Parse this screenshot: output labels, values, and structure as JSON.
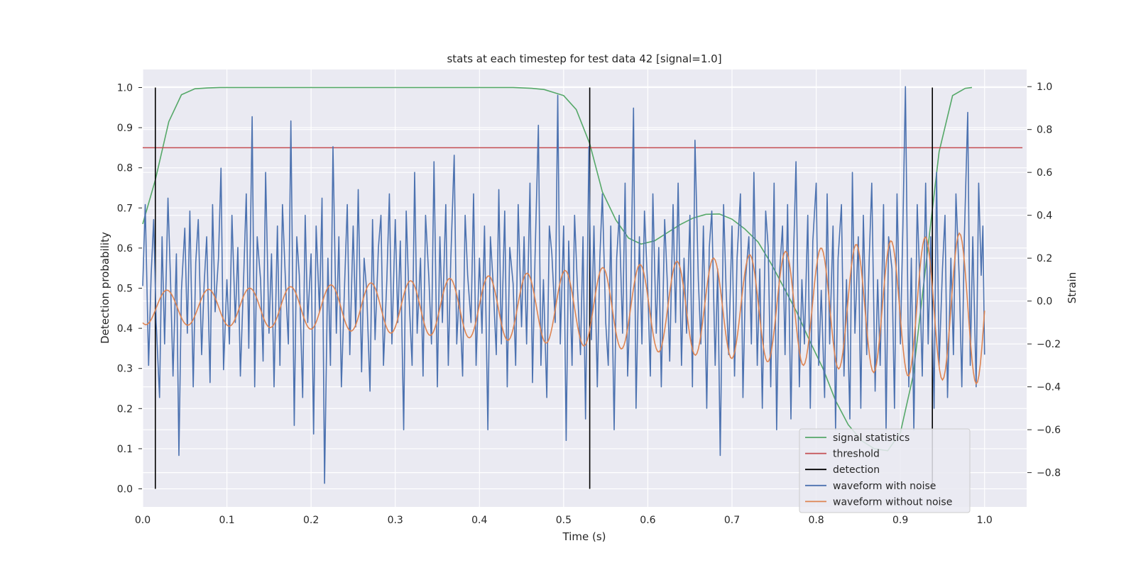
{
  "chart_data": {
    "type": "line",
    "title": "stats at each timestep for test data 42 [signal=1.0]",
    "xlabel": "Time (s)",
    "ylabel_left": "Detection probability",
    "ylabel_right": "Strain",
    "xlim": [
      0.0,
      1.05
    ],
    "ylim_left": [
      -0.045,
      1.045
    ],
    "ylim_right": [
      -0.96,
      1.08
    ],
    "x_ticks": [
      0.0,
      0.1,
      0.2,
      0.3,
      0.4,
      0.5,
      0.6,
      0.7,
      0.8,
      0.9,
      1.0
    ],
    "x_tick_labels": [
      "0.0",
      "0.1",
      "0.2",
      "0.3",
      "0.4",
      "0.5",
      "0.6",
      "0.7",
      "0.8",
      "0.9",
      "1.0"
    ],
    "y_left_ticks": [
      0.0,
      0.1,
      0.2,
      0.3,
      0.4,
      0.5,
      0.6,
      0.7,
      0.8,
      0.9,
      1.0
    ],
    "y_left_tick_labels": [
      "0.0",
      "0.1",
      "0.2",
      "0.3",
      "0.4",
      "0.5",
      "0.6",
      "0.7",
      "0.8",
      "0.9",
      "1.0"
    ],
    "y_right_ticks": [
      -0.8,
      -0.6,
      -0.4,
      -0.2,
      0.0,
      0.2,
      0.4,
      0.6,
      0.8,
      1.0
    ],
    "y_right_tick_labels": [
      "−0.8",
      "−0.6",
      "−0.4",
      "−0.2",
      "0.0",
      "0.2",
      "0.4",
      "0.6",
      "0.8",
      "1.0"
    ],
    "grid": true,
    "legend_position": "lower-right",
    "colors": {
      "signal_statistics": "#55a868",
      "threshold": "#c44e52",
      "detection": "#000000",
      "waveform_with_noise": "#4c72b0",
      "waveform_without_noise": "#dd8452",
      "axes_background": "#eaeaf2",
      "grid": "#ffffff"
    },
    "legend": [
      {
        "key": "signal_statistics",
        "label": "signal statistics"
      },
      {
        "key": "threshold",
        "label": "threshold"
      },
      {
        "key": "detection",
        "label": "detection"
      },
      {
        "key": "waveform_with_noise",
        "label": "waveform with noise"
      },
      {
        "key": "waveform_without_noise",
        "label": "waveform without noise"
      }
    ],
    "series": [
      {
        "name": "signal statistics",
        "axis": "left",
        "x": [
          0.0,
          0.015,
          0.031,
          0.046,
          0.062,
          0.077,
          0.092,
          0.2,
          0.3,
          0.4,
          0.44,
          0.462,
          0.477,
          0.5,
          0.515,
          0.531,
          0.546,
          0.562,
          0.577,
          0.592,
          0.608,
          0.623,
          0.638,
          0.654,
          0.669,
          0.685,
          0.7,
          0.715,
          0.731,
          0.746,
          0.762,
          0.777,
          0.792,
          0.808,
          0.823,
          0.838,
          0.854,
          0.869,
          0.885,
          0.9,
          0.915,
          0.931,
          0.946,
          0.962,
          0.977,
          0.985
        ],
        "y": [
          0.66,
          0.77,
          0.915,
          0.982,
          0.997,
          0.999,
          1.0,
          1.0,
          1.0,
          1.0,
          1.0,
          0.998,
          0.995,
          0.98,
          0.945,
          0.86,
          0.74,
          0.67,
          0.625,
          0.61,
          0.618,
          0.638,
          0.658,
          0.675,
          0.684,
          0.685,
          0.672,
          0.648,
          0.615,
          0.563,
          0.5,
          0.44,
          0.37,
          0.3,
          0.22,
          0.16,
          0.12,
          0.1,
          0.095,
          0.14,
          0.28,
          0.57,
          0.84,
          0.98,
          0.998,
          1.0
        ]
      },
      {
        "name": "threshold",
        "axis": "left",
        "x": [
          0.0,
          1.045
        ],
        "y": [
          0.85,
          0.85
        ]
      },
      {
        "name": "detection",
        "axis": "left",
        "type": "vlines",
        "x": [
          0.015,
          0.531,
          0.938
        ],
        "ymin": 0.0,
        "ymax": 1.0
      },
      {
        "name": "waveform with noise",
        "axis": "right",
        "x": [
          0.0,
          0.003,
          0.007,
          0.01,
          0.013,
          0.016,
          0.02,
          0.023,
          0.026,
          0.03,
          0.033,
          0.036,
          0.04,
          0.043,
          0.046,
          0.05,
          0.053,
          0.056,
          0.06,
          0.063,
          0.066,
          0.07,
          0.073,
          0.076,
          0.08,
          0.083,
          0.086,
          0.09,
          0.093,
          0.096,
          0.1,
          0.103,
          0.106,
          0.11,
          0.113,
          0.116,
          0.12,
          0.123,
          0.126,
          0.13,
          0.133,
          0.136,
          0.14,
          0.143,
          0.146,
          0.15,
          0.153,
          0.156,
          0.16,
          0.163,
          0.166,
          0.17,
          0.173,
          0.176,
          0.18,
          0.183,
          0.186,
          0.19,
          0.193,
          0.196,
          0.2,
          0.203,
          0.206,
          0.21,
          0.213,
          0.216,
          0.22,
          0.223,
          0.226,
          0.23,
          0.233,
          0.236,
          0.24,
          0.243,
          0.246,
          0.25,
          0.253,
          0.256,
          0.26,
          0.263,
          0.266,
          0.27,
          0.273,
          0.276,
          0.28,
          0.283,
          0.286,
          0.29,
          0.293,
          0.296,
          0.3,
          0.303,
          0.306,
          0.31,
          0.313,
          0.316,
          0.32,
          0.323,
          0.326,
          0.33,
          0.333,
          0.336,
          0.34,
          0.343,
          0.346,
          0.35,
          0.353,
          0.356,
          0.36,
          0.363,
          0.366,
          0.37,
          0.373,
          0.376,
          0.38,
          0.383,
          0.386,
          0.39,
          0.393,
          0.396,
          0.4,
          0.403,
          0.406,
          0.41,
          0.413,
          0.416,
          0.42,
          0.423,
          0.426,
          0.43,
          0.433,
          0.436,
          0.44,
          0.443,
          0.446,
          0.45,
          0.453,
          0.456,
          0.46,
          0.463,
          0.466,
          0.47,
          0.473,
          0.476,
          0.48,
          0.483,
          0.486,
          0.49,
          0.493,
          0.496,
          0.5,
          0.503,
          0.506,
          0.51,
          0.513,
          0.516,
          0.52,
          0.523,
          0.526,
          0.53,
          0.533,
          0.536,
          0.54,
          0.543,
          0.546,
          0.55,
          0.553,
          0.556,
          0.56,
          0.563,
          0.566,
          0.57,
          0.573,
          0.576,
          0.58,
          0.583,
          0.586,
          0.59,
          0.593,
          0.596,
          0.6,
          0.603,
          0.606,
          0.61,
          0.613,
          0.616,
          0.62,
          0.623,
          0.626,
          0.63,
          0.633,
          0.636,
          0.64,
          0.643,
          0.646,
          0.65,
          0.653,
          0.656,
          0.66,
          0.663,
          0.666,
          0.67,
          0.673,
          0.676,
          0.68,
          0.683,
          0.686,
          0.69,
          0.693,
          0.696,
          0.7,
          0.703,
          0.706,
          0.71,
          0.713,
          0.716,
          0.72,
          0.723,
          0.726,
          0.73,
          0.733,
          0.736,
          0.74,
          0.743,
          0.746,
          0.75,
          0.753,
          0.756,
          0.76,
          0.763,
          0.766,
          0.77,
          0.773,
          0.776,
          0.78,
          0.783,
          0.786,
          0.79,
          0.793,
          0.796,
          0.8,
          0.803,
          0.806,
          0.81,
          0.813,
          0.816,
          0.82,
          0.823,
          0.826,
          0.83,
          0.833,
          0.836,
          0.84,
          0.843,
          0.846,
          0.85,
          0.853,
          0.856,
          0.86,
          0.863,
          0.866,
          0.87,
          0.873,
          0.876,
          0.88,
          0.883,
          0.886,
          0.89,
          0.893,
          0.896,
          0.9,
          0.903,
          0.906,
          0.91,
          0.913,
          0.916,
          0.92,
          0.923,
          0.926,
          0.93,
          0.933,
          0.936,
          0.94,
          0.943,
          0.946,
          0.95,
          0.953,
          0.956,
          0.96,
          0.963,
          0.966,
          0.97,
          0.973,
          0.976,
          0.98,
          0.983,
          0.986,
          0.99,
          0.993,
          0.996,
          0.998,
          1.0
        ],
        "y": [
          0.07,
          0.45,
          -0.3,
          0.12,
          0.38,
          -0.1,
          -0.45,
          0.3,
          -0.2,
          0.48,
          0.1,
          -0.35,
          0.22,
          -0.72,
          0.05,
          0.34,
          -0.15,
          0.42,
          -0.4,
          0.18,
          0.38,
          -0.25,
          0.08,
          0.3,
          -0.38,
          0.45,
          -0.05,
          0.2,
          0.62,
          -0.32,
          0.1,
          -0.2,
          0.4,
          -0.1,
          0.25,
          -0.35,
          0.12,
          0.5,
          -0.22,
          0.86,
          -0.4,
          0.3,
          0.1,
          -0.28,
          0.6,
          -0.15,
          0.22,
          -0.4,
          0.35,
          -0.3,
          0.45,
          0.05,
          -0.2,
          0.84,
          -0.58,
          0.3,
          0.12,
          -0.45,
          0.4,
          -0.1,
          0.22,
          -0.62,
          0.35,
          -0.05,
          0.48,
          -0.85,
          0.2,
          -0.3,
          0.72,
          -0.15,
          0.3,
          -0.4,
          0.1,
          0.45,
          -0.25,
          0.35,
          -0.12,
          0.52,
          -0.33,
          0.2,
          0.05,
          -0.42,
          0.38,
          -0.18,
          0.25,
          0.4,
          -0.3,
          0.1,
          0.5,
          -0.2,
          0.38,
          -0.1,
          0.28,
          -0.6,
          0.42,
          0.05,
          -0.3,
          0.6,
          -0.15,
          0.2,
          -0.35,
          0.4,
          0.1,
          -0.2,
          0.65,
          -0.4,
          0.3,
          -0.1,
          0.45,
          -0.3,
          0.2,
          0.68,
          -0.2,
          0.05,
          -0.35,
          0.4,
          0.12,
          -0.1,
          0.5,
          -0.3,
          0.2,
          -0.15,
          0.35,
          -0.6,
          0.3,
          0.1,
          -0.25,
          0.52,
          -0.2,
          0.42,
          -0.4,
          0.25,
          0.08,
          -0.3,
          0.45,
          -0.12,
          0.3,
          -0.2,
          0.55,
          -0.38,
          0.2,
          0.82,
          -0.3,
          0.1,
          -0.45,
          0.35,
          0.22,
          -0.1,
          0.96,
          -0.2,
          0.35,
          -0.65,
          0.28,
          -0.3,
          0.4,
          0.1,
          -0.25,
          0.3,
          -0.55,
          0.72,
          -0.18,
          0.35,
          -0.4,
          0.2,
          0.5,
          -0.1,
          -0.3,
          0.35,
          -0.6,
          0.2,
          0.4,
          -0.15,
          0.55,
          -0.35,
          0.1,
          0.9,
          -0.5,
          0.3,
          -0.2,
          0.42,
          0.05,
          -0.35,
          0.5,
          -0.15,
          0.25,
          -0.4,
          0.38,
          0.1,
          -0.28,
          0.45,
          -0.1,
          0.55,
          -0.3,
          0.2,
          -0.15,
          0.4,
          -0.4,
          0.75,
          0.1,
          -0.2,
          0.35,
          -0.5,
          0.25,
          0.42,
          -0.3,
          0.15,
          -0.72,
          0.45,
          0.05,
          -0.25,
          0.35,
          -0.35,
          0.2,
          0.5,
          -0.45,
          0.1,
          0.3,
          -0.2,
          0.6,
          -0.3,
          0.15,
          -0.5,
          0.42,
          0.25,
          -0.4,
          0.55,
          -0.6,
          0.1,
          0.35,
          -0.25,
          0.45,
          -0.55,
          0.2,
          0.65,
          -0.4,
          0.1,
          -0.2,
          0.4,
          -0.5,
          0.28,
          0.55,
          -0.3,
          0.05,
          -0.45,
          0.5,
          -0.2,
          0.35,
          -0.6,
          0.2,
          0.45,
          -0.35,
          0.1,
          -0.55,
          0.6,
          -0.15,
          0.3,
          -0.5,
          0.4,
          -0.25,
          0.2,
          0.55,
          -0.42,
          0.1,
          -0.3,
          0.45,
          -0.6,
          0.3,
          0.15,
          -0.5,
          0.5,
          -0.2,
          0.35,
          1.0,
          -0.4,
          0.2,
          -0.6,
          0.45,
          0.1,
          -0.35,
          0.55,
          -0.2,
          0.3,
          -0.5,
          0.6,
          -0.3,
          0.15,
          0.4,
          -0.45,
          0.2,
          -0.25,
          0.5,
          0.1,
          -0.4,
          0.3,
          0.88,
          -0.3,
          0.3,
          -0.4,
          0.55,
          0.12,
          0.35,
          -0.25
        ],
        "x_is_approx": true
      },
      {
        "name": "waveform without noise",
        "axis": "right",
        "x": [
          0.0,
          1.0
        ],
        "y": [
          -0.06,
          0.35
        ],
        "chirp": {
          "start_amplitude": 0.08,
          "end_amplitude": 0.36,
          "start_period": 0.05,
          "end_period": 0.04,
          "offset": -0.03
        }
      }
    ]
  }
}
